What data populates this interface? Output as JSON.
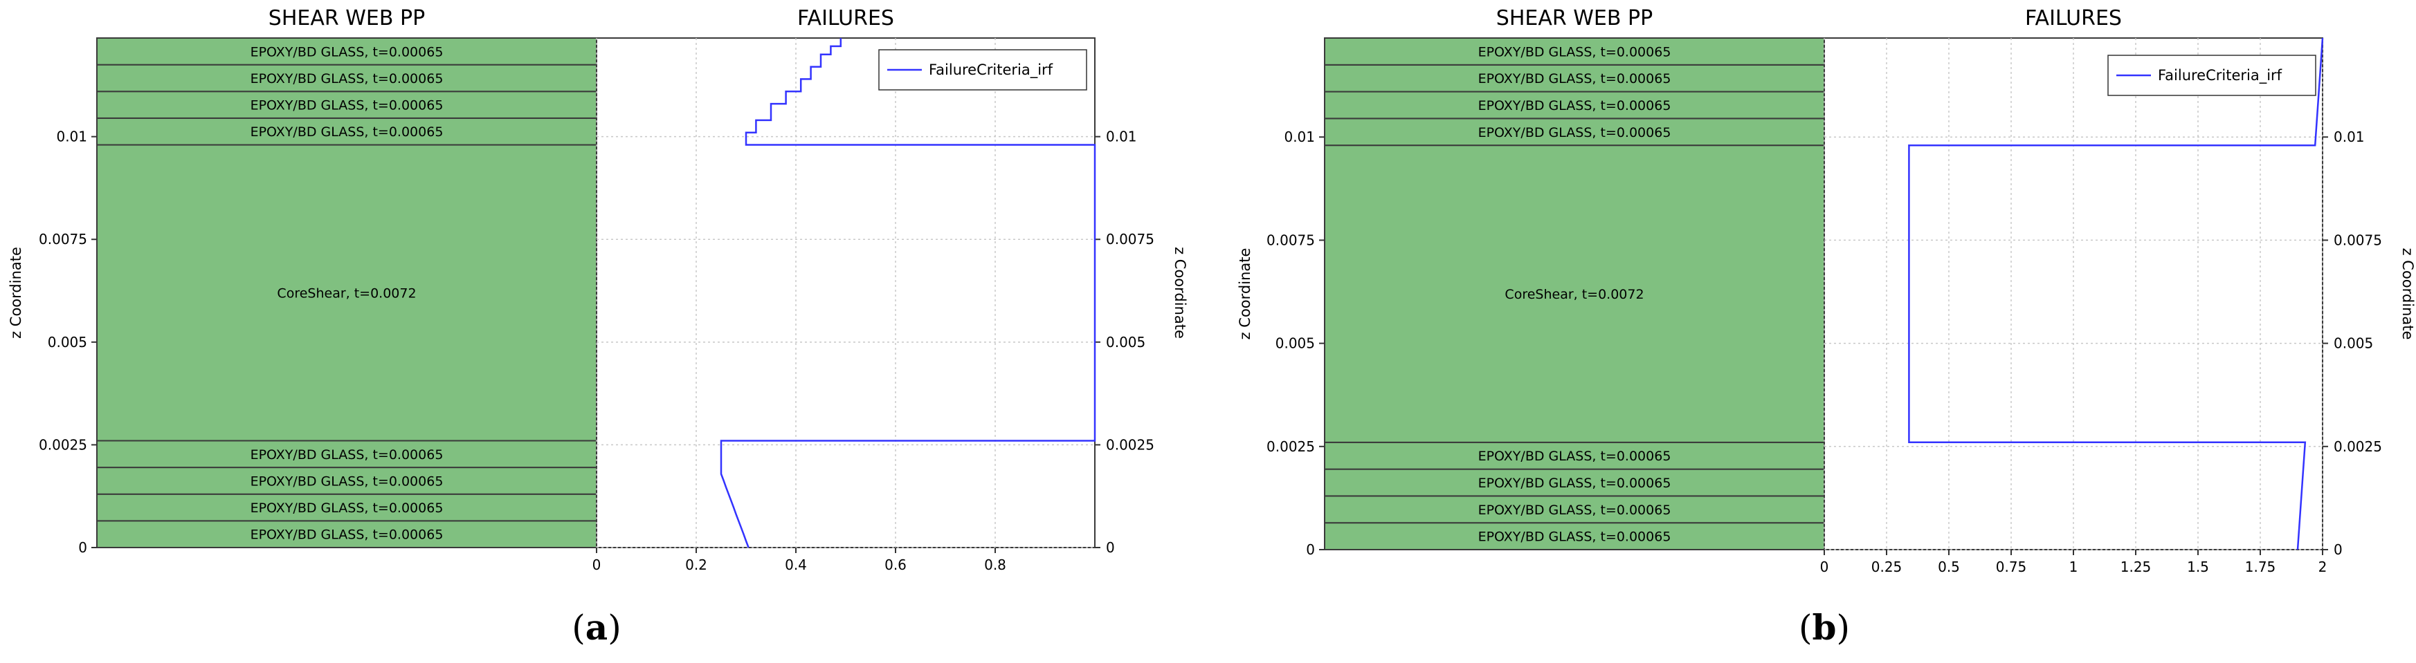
{
  "panels": [
    {
      "stack_title": "SHEAR WEB  PP",
      "failure_title": "FAILURES",
      "z_axis_label": "z Coordinate",
      "legend_label": "FailureCriteria_irf",
      "caption_open": "(",
      "caption_letter": "a",
      "caption_close": ")",
      "stack": {
        "layers": [
          {
            "label": "EPOXY/BD GLASS, t=0.00065",
            "z_bottom": 0,
            "z_top": 0.00065
          },
          {
            "label": "EPOXY/BD GLASS, t=0.00065",
            "z_bottom": 0.00065,
            "z_top": 0.0013
          },
          {
            "label": "EPOXY/BD GLASS, t=0.00065",
            "z_bottom": 0.0013,
            "z_top": 0.00195
          },
          {
            "label": "EPOXY/BD GLASS, t=0.00065",
            "z_bottom": 0.00195,
            "z_top": 0.0026
          },
          {
            "label": "CoreShear, t=0.0072",
            "z_bottom": 0.0026,
            "z_top": 0.0098
          },
          {
            "label": "EPOXY/BD GLASS, t=0.00065",
            "z_bottom": 0.0098,
            "z_top": 0.01045
          },
          {
            "label": "EPOXY/BD GLASS, t=0.00065",
            "z_bottom": 0.01045,
            "z_top": 0.0111
          },
          {
            "label": "EPOXY/BD GLASS, t=0.00065",
            "z_bottom": 0.0111,
            "z_top": 0.01175
          },
          {
            "label": "EPOXY/BD GLASS, t=0.00065",
            "z_bottom": 0.01175,
            "z_top": 0.0124
          }
        ]
      },
      "chart_data": {
        "type": "line",
        "title": "FAILURES",
        "xlabel": "",
        "ylabel": "z Coordinate",
        "xlim": [
          0,
          1
        ],
        "ylim": [
          0,
          0.0124
        ],
        "x_ticks": [
          0,
          0.2,
          0.4,
          0.6,
          0.8
        ],
        "x_tick_labels": [
          "0",
          "0.2",
          "0.4",
          "0.6",
          "0.8"
        ],
        "y_ticks": [
          0,
          0.0025,
          0.005,
          0.0075,
          0.01
        ],
        "y_tick_labels": [
          "0",
          "0.0025",
          "0.005",
          "0.0075",
          "0.01"
        ],
        "grid": true,
        "legend_position": "top-right",
        "series": [
          {
            "name": "FailureCriteria_irf",
            "color": "#3333ff",
            "points": [
              [
                0.305,
                0
              ],
              [
                0.3,
                0.00016
              ],
              [
                0.295,
                0.00033
              ],
              [
                0.29,
                0.00049
              ],
              [
                0.285,
                0.00065
              ],
              [
                0.28,
                0.00081
              ],
              [
                0.275,
                0.00098
              ],
              [
                0.27,
                0.00114
              ],
              [
                0.265,
                0.0013
              ],
              [
                0.26,
                0.00146
              ],
              [
                0.255,
                0.00163
              ],
              [
                0.25,
                0.00179
              ],
              [
                0.25,
                0.0026
              ],
              [
                1.0,
                0.0026
              ],
              [
                1.0,
                0.0098
              ],
              [
                0.3,
                0.0098
              ],
              [
                0.3,
                0.0101
              ],
              [
                0.32,
                0.0101
              ],
              [
                0.32,
                0.0104
              ],
              [
                0.35,
                0.0104
              ],
              [
                0.35,
                0.0108
              ],
              [
                0.38,
                0.0108
              ],
              [
                0.38,
                0.0111
              ],
              [
                0.41,
                0.0111
              ],
              [
                0.41,
                0.0114
              ],
              [
                0.43,
                0.0114
              ],
              [
                0.43,
                0.0117
              ],
              [
                0.45,
                0.0117
              ],
              [
                0.45,
                0.012
              ],
              [
                0.47,
                0.012
              ],
              [
                0.47,
                0.0122
              ],
              [
                0.49,
                0.0122
              ],
              [
                0.49,
                0.0124
              ]
            ]
          }
        ]
      }
    },
    {
      "stack_title": "SHEAR WEB  PP",
      "failure_title": "FAILURES",
      "z_axis_label": "z Coordinate",
      "legend_label": "FailureCriteria_irf",
      "caption_open": "(",
      "caption_letter": "b",
      "caption_close": ")",
      "stack": {
        "layers": [
          {
            "label": "EPOXY/BD GLASS, t=0.00065",
            "z_bottom": 0,
            "z_top": 0.00065
          },
          {
            "label": "EPOXY/BD GLASS, t=0.00065",
            "z_bottom": 0.00065,
            "z_top": 0.0013
          },
          {
            "label": "EPOXY/BD GLASS, t=0.00065",
            "z_bottom": 0.0013,
            "z_top": 0.00195
          },
          {
            "label": "EPOXY/BD GLASS, t=0.00065",
            "z_bottom": 0.00195,
            "z_top": 0.0026
          },
          {
            "label": "CoreShear, t=0.0072",
            "z_bottom": 0.0026,
            "z_top": 0.0098
          },
          {
            "label": "EPOXY/BD GLASS, t=0.00065",
            "z_bottom": 0.0098,
            "z_top": 0.01045
          },
          {
            "label": "EPOXY/BD GLASS, t=0.00065",
            "z_bottom": 0.01045,
            "z_top": 0.0111
          },
          {
            "label": "EPOXY/BD GLASS, t=0.00065",
            "z_bottom": 0.0111,
            "z_top": 0.01175
          },
          {
            "label": "EPOXY/BD GLASS, t=0.00065",
            "z_bottom": 0.01175,
            "z_top": 0.0124
          }
        ]
      },
      "chart_data": {
        "type": "line",
        "title": "FAILURES",
        "xlabel": "",
        "ylabel": "z Coordinate",
        "xlim": [
          0,
          2
        ],
        "ylim": [
          0,
          0.0124
        ],
        "x_ticks": [
          0,
          0.25,
          0.5,
          0.75,
          1,
          1.25,
          1.5,
          1.75,
          2
        ],
        "x_tick_labels": [
          "0",
          "0.25",
          "0.5",
          "0.75",
          "1",
          "1.25",
          "1.5",
          "1.75",
          "2"
        ],
        "y_ticks": [
          0,
          0.0025,
          0.005,
          0.0075,
          0.01
        ],
        "y_tick_labels": [
          "0",
          "0.0025",
          "0.005",
          "0.0075",
          "0.01"
        ],
        "grid": true,
        "legend_position": "top-right",
        "series": [
          {
            "name": "FailureCriteria_irf",
            "color": "#3333ff",
            "points": [
              [
                1.9,
                0
              ],
              [
                1.93,
                0.0026
              ],
              [
                0.34,
                0.0026
              ],
              [
                0.34,
                0.0098
              ],
              [
                1.97,
                0.0098
              ],
              [
                2.0,
                0.0124
              ]
            ]
          }
        ]
      }
    }
  ]
}
